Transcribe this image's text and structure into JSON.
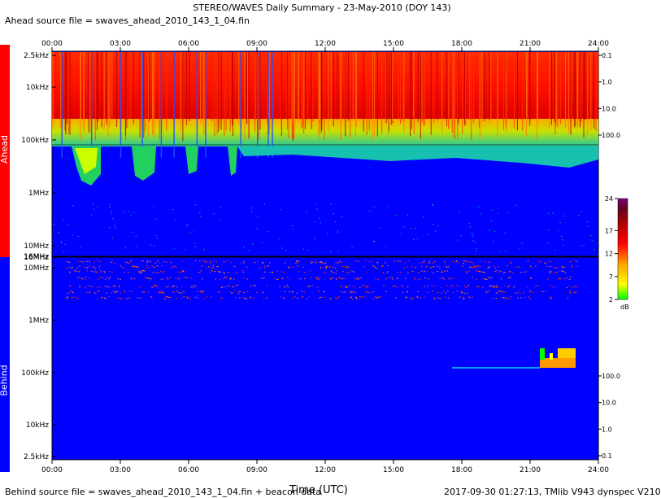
{
  "title": "STEREO/WAVES Daily Summary - 23-May-2010 (DOY 143)",
  "ahead_source": "Ahead source file = swaves_ahead_2010_143_1_04.fin",
  "behind_source": "Behind source file = swaves_ahead_2010_143_1_04.fin + beacon data",
  "footer_right": "2017-09-30 01:27:13, TMlib V943 dynspec V210",
  "xlabel": "Time (UTC)",
  "side_labels": {
    "ahead": "Ahead",
    "behind": "Behind"
  },
  "colors": {
    "ahead": "#ff0000",
    "behind": "#0000ff",
    "background": "#0000ff"
  },
  "chart_data": {
    "type": "heatmap",
    "x_ticks": [
      "00:00",
      "03:00",
      "06:00",
      "09:00",
      "12:00",
      "15:00",
      "18:00",
      "21:00",
      "24:00"
    ],
    "xlim": [
      "00:00",
      "24:00"
    ],
    "panels": [
      {
        "name": "Ahead",
        "freq_ticks": [
          "2.5kHz",
          "10kHz",
          "100kHz",
          "1MHz",
          "10MHz",
          "16MHz"
        ],
        "right_ticks": [
          "0.1",
          "1.0",
          "10.0",
          "100.0"
        ]
      },
      {
        "name": "Behind",
        "freq_ticks": [
          "16MHz",
          "10MHz",
          "1MHz",
          "100kHz",
          "10kHz",
          "2.5kHz"
        ],
        "right_ticks": [
          "100.0",
          "10.0",
          "1.0",
          "0.1"
        ]
      }
    ],
    "colorbar": {
      "ticks": [
        "24",
        "17",
        "12",
        "7",
        "2"
      ],
      "range": [
        2,
        24
      ],
      "unit": "dB",
      "colors": [
        "#00ff00",
        "#ffff00",
        "#ffa500",
        "#ff0000",
        "#b00000",
        "#600020",
        "#800080"
      ]
    }
  }
}
